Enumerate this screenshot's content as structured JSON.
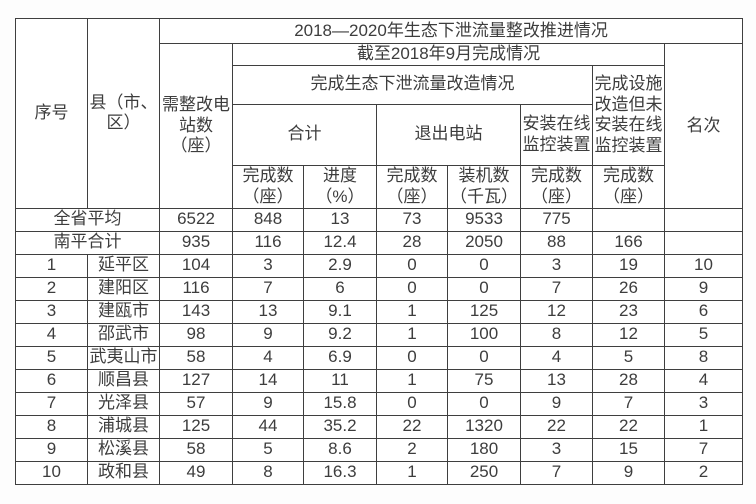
{
  "colors": {
    "border": "#3f3f3f",
    "text": "#3d3d3d",
    "table_background": "#ffffff",
    "page_background": "#fdfdfd"
  },
  "table": {
    "title": "2018—2020年生态下泄流量整改推进情况",
    "header": {
      "seq": "序号",
      "county": "县（市、\n区）",
      "need_rectify": "需整改电\n站数\n（座）",
      "asof_2018_09": "截至2018年9月完成情况",
      "flow_retrofit": "完成生态下泄流量改造情况",
      "facility_done_no_monitor": "完成设施\n改造但未\n安装在线\n监控装置",
      "rank": "名次",
      "subtotal": "合计",
      "exit_station": "退出电站",
      "online_monitor": "安装在线\n监控装置",
      "leaf": [
        "完成数\n（座）",
        "进度\n（%）",
        "完成数\n（座）",
        "装机数\n（千瓦）",
        "完成数\n（座）",
        "完成数\n（座）"
      ]
    },
    "summary_rows": [
      {
        "label": "全省平均",
        "values": [
          "6522",
          "848",
          "13",
          "73",
          "9533",
          "775",
          "",
          ""
        ]
      },
      {
        "label": "南平合计",
        "values": [
          "935",
          "116",
          "12.4",
          "28",
          "2050",
          "88",
          "166",
          ""
        ]
      }
    ],
    "rows": [
      {
        "seq": "1",
        "county": "延平区",
        "values": [
          "104",
          "3",
          "2.9",
          "0",
          "0",
          "3",
          "19",
          "10"
        ]
      },
      {
        "seq": "2",
        "county": "建阳区",
        "values": [
          "116",
          "7",
          "6",
          "0",
          "0",
          "7",
          "26",
          "9"
        ]
      },
      {
        "seq": "3",
        "county": "建瓯市",
        "values": [
          "143",
          "13",
          "9.1",
          "1",
          "125",
          "12",
          "23",
          "6"
        ]
      },
      {
        "seq": "4",
        "county": "邵武市",
        "values": [
          "98",
          "9",
          "9.2",
          "1",
          "100",
          "8",
          "12",
          "5"
        ]
      },
      {
        "seq": "5",
        "county": "武夷山市",
        "values": [
          "58",
          "4",
          "6.9",
          "0",
          "0",
          "4",
          "5",
          "8"
        ]
      },
      {
        "seq": "6",
        "county": "顺昌县",
        "values": [
          "127",
          "14",
          "11",
          "1",
          "75",
          "13",
          "28",
          "4"
        ]
      },
      {
        "seq": "7",
        "county": "光泽县",
        "values": [
          "57",
          "9",
          "15.8",
          "0",
          "0",
          "9",
          "7",
          "3"
        ]
      },
      {
        "seq": "8",
        "county": "浦城县",
        "values": [
          "125",
          "44",
          "35.2",
          "22",
          "1320",
          "22",
          "22",
          "1"
        ]
      },
      {
        "seq": "9",
        "county": "松溪县",
        "values": [
          "58",
          "5",
          "8.6",
          "2",
          "180",
          "3",
          "15",
          "7"
        ]
      },
      {
        "seq": "10",
        "county": "政和县",
        "values": [
          "49",
          "8",
          "16.3",
          "1",
          "250",
          "7",
          "9",
          "2"
        ]
      }
    ]
  }
}
